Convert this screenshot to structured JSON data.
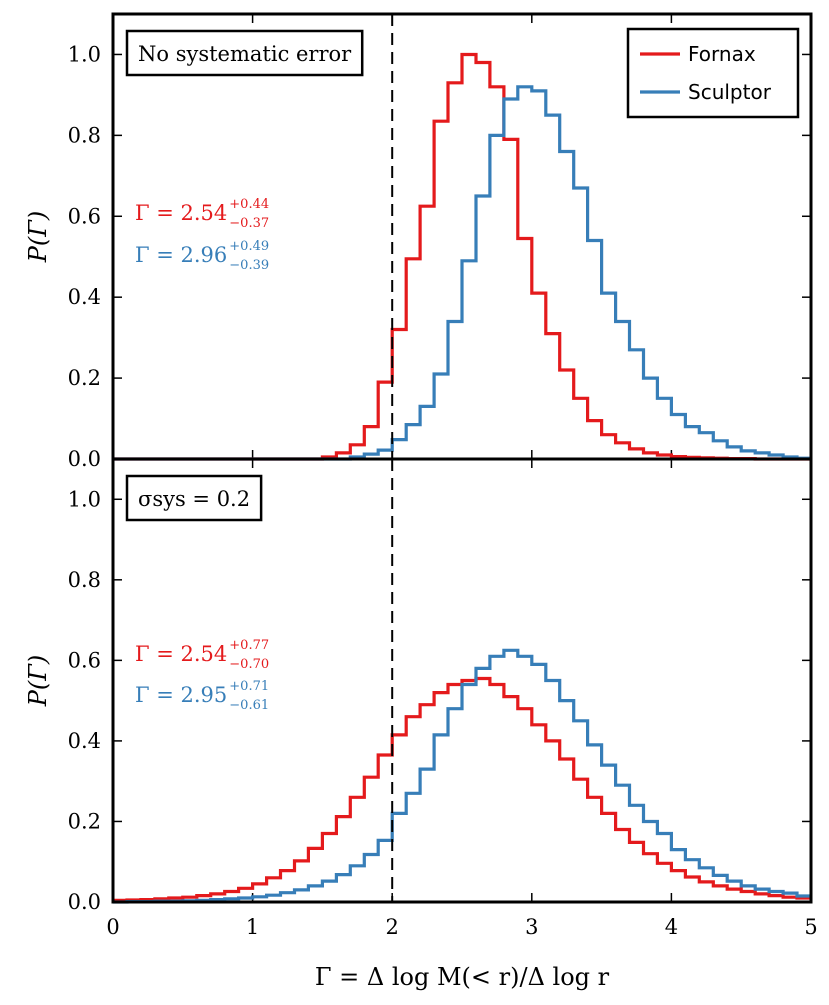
{
  "chart_data": [
    {
      "type": "histogram-step",
      "panel": "top",
      "label_box": "No systematic error",
      "xlabel": "Γ = Δ log M(< r)/Δ log r",
      "ylabel": "P(Γ)",
      "xlim": [
        0,
        5
      ],
      "ylim": [
        0,
        1.1
      ],
      "xticks": [
        "0",
        "1",
        "2",
        "3",
        "4",
        "5"
      ],
      "yticks": [
        "0.0",
        "0.2",
        "0.4",
        "0.6",
        "0.8",
        "1.0"
      ],
      "vline_x": 2.0,
      "bin_width": 0.1,
      "bin_start": 1.0,
      "legend": {
        "position": "top-right",
        "entries": [
          "Fornax",
          "Sculptor"
        ]
      },
      "series": [
        {
          "name": "Fornax",
          "color": "#e41a1c",
          "annotation": {
            "main": "Γ = 2.54",
            "sup": "+0.44",
            "sub": "−0.37"
          },
          "values": [
            0.0,
            0.0,
            0.0,
            0.0,
            0.0,
            0.005,
            0.015,
            0.035,
            0.08,
            0.19,
            0.32,
            0.495,
            0.625,
            0.835,
            0.93,
            1.0,
            0.98,
            0.92,
            0.79,
            0.545,
            0.41,
            0.31,
            0.22,
            0.15,
            0.095,
            0.06,
            0.04,
            0.025,
            0.015,
            0.01,
            0.006,
            0.004,
            0.003,
            0.002,
            0.001,
            0.001,
            0.0,
            0.0,
            0.0,
            0.0
          ]
        },
        {
          "name": "Sculptor",
          "color": "#377eb8",
          "annotation": {
            "main": "Γ = 2.96",
            "sup": "+0.49",
            "sub": "−0.39"
          },
          "values": [
            0.0,
            0.0,
            0.0,
            0.0,
            0.0,
            0.0,
            0.0,
            0.005,
            0.012,
            0.022,
            0.048,
            0.085,
            0.13,
            0.21,
            0.34,
            0.49,
            0.65,
            0.8,
            0.89,
            0.92,
            0.91,
            0.85,
            0.76,
            0.67,
            0.54,
            0.41,
            0.34,
            0.27,
            0.2,
            0.15,
            0.11,
            0.08,
            0.065,
            0.045,
            0.03,
            0.02,
            0.015,
            0.01,
            0.005,
            0.002
          ]
        }
      ]
    },
    {
      "type": "histogram-step",
      "panel": "bottom",
      "label_box": "σsys = 0.2",
      "xlabel": "Γ = Δ log M(< r)/Δ log r",
      "ylabel": "P(Γ)",
      "xlim": [
        0,
        5
      ],
      "ylim": [
        0,
        1.1
      ],
      "xticks": [
        "0",
        "1",
        "2",
        "3",
        "4",
        "5"
      ],
      "yticks": [
        "0.0",
        "0.2",
        "0.4",
        "0.6",
        "0.8",
        "1.0"
      ],
      "vline_x": 2.0,
      "bin_width": 0.1,
      "bin_start": 0.0,
      "series": [
        {
          "name": "Fornax",
          "color": "#e41a1c",
          "annotation": {
            "main": "Γ = 2.54",
            "sup": "+0.77",
            "sub": "−0.70"
          },
          "values": [
            0.004,
            0.005,
            0.006,
            0.008,
            0.01,
            0.012,
            0.016,
            0.02,
            0.026,
            0.034,
            0.045,
            0.06,
            0.078,
            0.102,
            0.133,
            0.17,
            0.212,
            0.26,
            0.31,
            0.365,
            0.415,
            0.46,
            0.49,
            0.52,
            0.54,
            0.55,
            0.555,
            0.54,
            0.51,
            0.48,
            0.44,
            0.4,
            0.355,
            0.305,
            0.26,
            0.22,
            0.18,
            0.148,
            0.12,
            0.096,
            0.078,
            0.062,
            0.05,
            0.04,
            0.032,
            0.026,
            0.02,
            0.016,
            0.012,
            0.01
          ]
        },
        {
          "name": "Sculptor",
          "color": "#377eb8",
          "annotation": {
            "main": "Γ = 2.95",
            "sup": "+0.71",
            "sub": "−0.61"
          },
          "values": [
            0.0,
            0.001,
            0.001,
            0.002,
            0.002,
            0.003,
            0.004,
            0.006,
            0.008,
            0.01,
            0.013,
            0.017,
            0.023,
            0.03,
            0.04,
            0.052,
            0.068,
            0.09,
            0.118,
            0.153,
            0.22,
            0.27,
            0.33,
            0.415,
            0.48,
            0.54,
            0.58,
            0.61,
            0.625,
            0.61,
            0.59,
            0.55,
            0.5,
            0.45,
            0.39,
            0.34,
            0.29,
            0.24,
            0.2,
            0.17,
            0.13,
            0.105,
            0.085,
            0.066,
            0.052,
            0.04,
            0.032,
            0.026,
            0.022,
            0.015
          ]
        }
      ]
    }
  ]
}
